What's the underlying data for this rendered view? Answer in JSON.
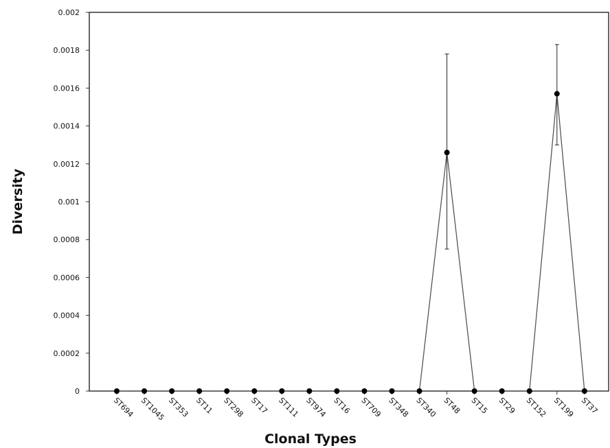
{
  "chart_data": {
    "type": "line",
    "title": "",
    "xlabel": "Clonal Types",
    "ylabel": "Diversity",
    "categories": [
      "ST694",
      "ST1045",
      "ST353",
      "ST11",
      "ST298",
      "ST17",
      "ST111",
      "ST974",
      "ST16",
      "ST709",
      "ST348",
      "ST340",
      "ST48",
      "ST15",
      "ST29",
      "ST152",
      "ST199",
      "ST37"
    ],
    "series": [
      {
        "values": [
          0,
          0,
          0,
          0,
          0,
          0,
          0,
          0,
          0,
          0,
          0,
          0,
          0.00126,
          0,
          0,
          0,
          0.00157,
          0
        ],
        "error_high": [
          null,
          null,
          null,
          null,
          null,
          null,
          null,
          null,
          null,
          null,
          null,
          null,
          0.00178,
          null,
          null,
          null,
          0.00183,
          null
        ],
        "error_low": [
          null,
          null,
          null,
          null,
          null,
          null,
          null,
          null,
          null,
          null,
          null,
          null,
          0.00075,
          null,
          null,
          null,
          0.0013,
          null
        ]
      }
    ],
    "ylim": [
      0,
      0.002
    ],
    "yticks": [
      "0",
      "0.0002",
      "0.0004",
      "0.0006",
      "0.0008",
      "0.001",
      "0.0012",
      "0.0014",
      "0.0016",
      "0.0018",
      "0.002"
    ],
    "grid": false,
    "colors": {
      "line": "#555555",
      "marker": "#000000",
      "axis": "#333333"
    }
  }
}
